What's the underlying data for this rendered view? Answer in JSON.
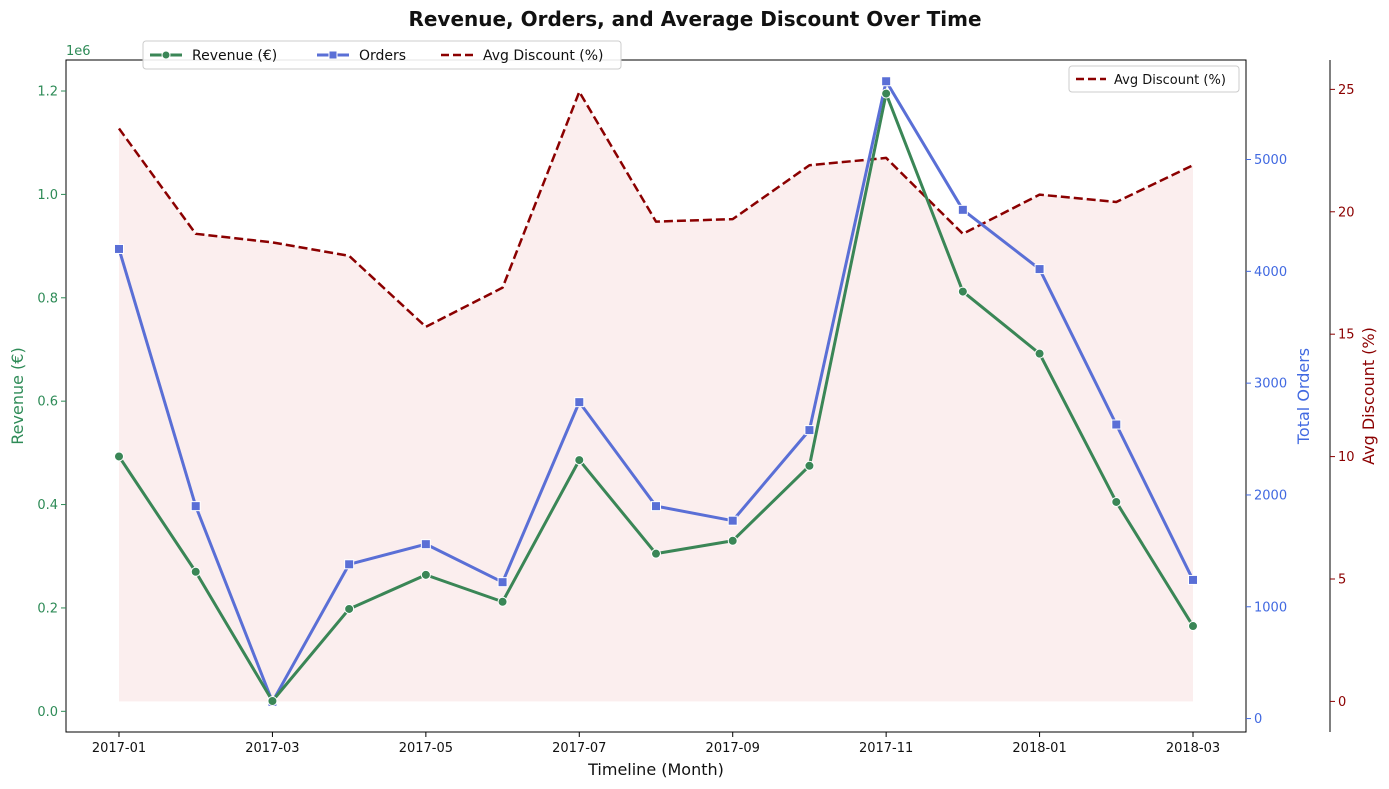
{
  "chart_data": {
    "type": "line",
    "title": "Revenue, Orders, and Average Discount Over Time",
    "xlabel": "Timeline (Month)",
    "x_tick_labels": [
      "2017-01",
      "2017-03",
      "2017-05",
      "2017-07",
      "2017-09",
      "2017-11",
      "2018-01",
      "2018-03"
    ],
    "x": [
      "2017-01",
      "2017-02",
      "2017-03",
      "2017-04",
      "2017-05",
      "2017-06",
      "2017-07",
      "2017-08",
      "2017-09",
      "2017-10",
      "2017-11",
      "2017-12",
      "2018-01",
      "2018-02",
      "2018-03"
    ],
    "axes": {
      "revenue": {
        "label": "Revenue (€)",
        "color": "#2e8b57",
        "ylim": [
          -0.04,
          1.26
        ],
        "ticks": [
          0.0,
          0.2,
          0.4,
          0.6,
          0.8,
          1.0,
          1.2
        ],
        "tick_labels": [
          "0.0",
          "0.2",
          "0.4",
          "0.6",
          "0.8",
          "1.0",
          "1.2"
        ],
        "scale_label": "1e6",
        "position": "left"
      },
      "orders": {
        "label": "Total Orders",
        "color": "#4169e1",
        "ylim": [
          -120,
          5890
        ],
        "ticks": [
          0,
          1000,
          2000,
          3000,
          4000,
          5000
        ],
        "tick_labels": [
          "0",
          "1000",
          "2000",
          "3000",
          "4000",
          "5000"
        ],
        "position": "right"
      },
      "discount": {
        "label": "Avg Discount (%)",
        "color": "#8b0000",
        "ylim": [
          -1.25,
          26.2
        ],
        "ticks": [
          0,
          5,
          10,
          15,
          20,
          25
        ],
        "tick_labels": [
          "0",
          "5",
          "10",
          "15",
          "20",
          "25"
        ],
        "position": "right-offset"
      }
    },
    "series": [
      {
        "name": "Revenue (€)",
        "axis": "revenue",
        "style": "solid",
        "marker": "circle",
        "color": "#3a8656",
        "values": [
          0.493,
          0.27,
          0.02,
          0.198,
          0.264,
          0.212,
          0.486,
          0.305,
          0.33,
          0.475,
          1.195,
          0.812,
          0.692,
          0.405,
          0.165
        ]
      },
      {
        "name": "Orders",
        "axis": "orders",
        "style": "solid",
        "marker": "square",
        "color": "#5a6fd6",
        "values": [
          4200,
          1900,
          150,
          1380,
          1560,
          1220,
          2830,
          1900,
          1770,
          2580,
          5700,
          4550,
          4020,
          2630,
          1240
        ]
      },
      {
        "name": "Avg Discount (%)",
        "axis": "discount",
        "style": "dashed",
        "marker": "none",
        "color": "#8b0000",
        "fill": "#fbeeee",
        "values": [
          23.4,
          19.1,
          18.75,
          18.2,
          15.3,
          16.9,
          24.9,
          19.6,
          19.7,
          21.9,
          22.2,
          19.1,
          20.7,
          20.4,
          21.9
        ]
      }
    ],
    "legend_main": {
      "position": "top-left",
      "entries": [
        "Revenue (€)",
        "Orders",
        "Avg Discount (%)"
      ]
    },
    "legend_secondary": {
      "position": "top-right",
      "entries": [
        "Avg Discount (%)"
      ]
    },
    "grid": false
  }
}
